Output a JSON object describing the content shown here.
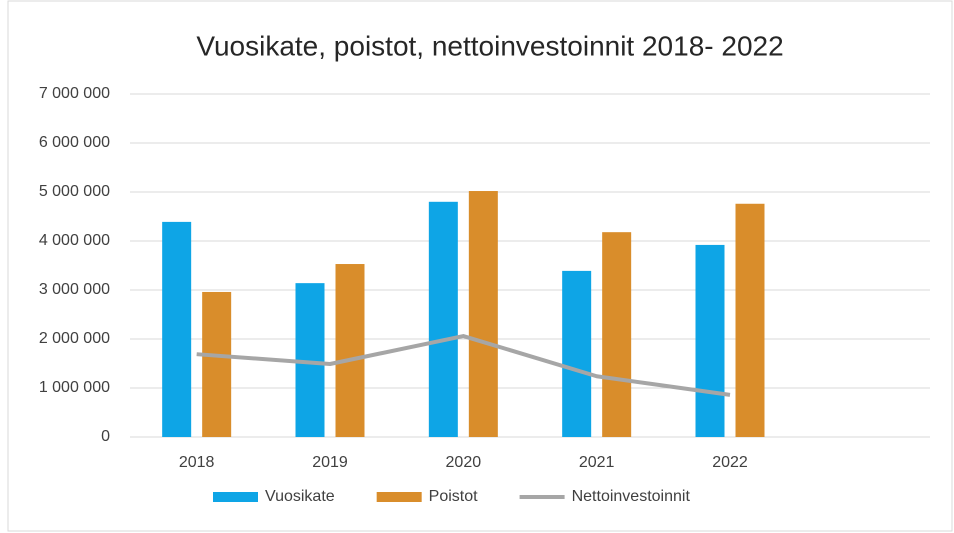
{
  "chart_data": {
    "type": "bar",
    "title": "Vuosikate, poistot, nettoinvestoinnit 2018- 2022",
    "categories": [
      "2018",
      "2019",
      "2020",
      "2021",
      "2022",
      null
    ],
    "series": [
      {
        "name": "Vuosikate",
        "type": "bar",
        "color": "#0ea5e6",
        "values": [
          4390000,
          3140000,
          4800000,
          3390000,
          3920000,
          null
        ]
      },
      {
        "name": "Poistot",
        "type": "bar",
        "color": "#d98d2b",
        "values": [
          2960000,
          3530000,
          5020000,
          4180000,
          4760000,
          null
        ]
      },
      {
        "name": "Nettoinvestoinnit",
        "type": "line",
        "color": "#a6a6a6",
        "values": [
          1690000,
          1490000,
          2060000,
          1240000,
          860000,
          null
        ]
      }
    ],
    "ylim": [
      0,
      7000000
    ],
    "yticks": [
      0,
      {
        "value": 1000000,
        "label": "1 000 000"
      },
      {
        "value": 2000000,
        "label": "2 000 000"
      },
      {
        "value": 3000000,
        "label": "3 000 000"
      },
      {
        "value": 4000000,
        "label": "4 000 000"
      },
      {
        "value": 5000000,
        "label": "5 000 000"
      },
      {
        "value": 6000000,
        "label": "6 000 000"
      },
      {
        "value": 7000000,
        "label": "7 000 000"
      }
    ],
    "grid": true,
    "legend": "bottom"
  }
}
